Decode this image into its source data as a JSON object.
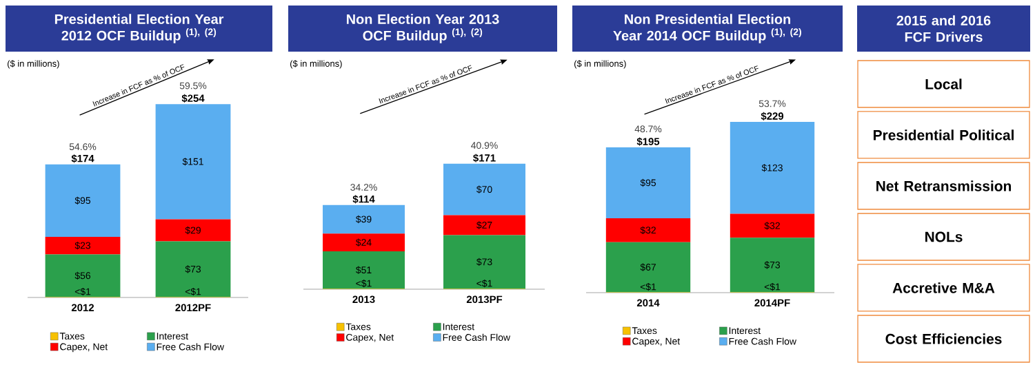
{
  "chart_data": [
    {
      "type": "bar",
      "stacked": true,
      "title": "Presidential Election Year 2012 OCF Buildup $^{(1), (2)}$",
      "subtitle": "($ in millions)",
      "categories": [
        "2012",
        "2012PF"
      ],
      "legend": "bottom",
      "tick_labels": "x",
      "series": [
        {
          "name": "Taxes",
          "color": "#f7c100",
          "values": [
            0.5,
            0.5
          ],
          "value_labels": [
            "<$1",
            "<$1"
          ]
        },
        {
          "name": "Interest",
          "color": "#2ba04c",
          "values": [
            56,
            73
          ],
          "value_labels": [
            "$56",
            "$73"
          ]
        },
        {
          "name": "Capex, Net",
          "color": "#ff0000",
          "values": [
            23,
            29
          ],
          "value_labels": [
            "$23",
            "$29"
          ]
        },
        {
          "name": "Free Cash Flow",
          "color": "#5aaef0",
          "values": [
            95,
            151
          ],
          "value_labels": [
            "$95",
            "$151"
          ]
        }
      ],
      "totals": [
        "$174",
        "$254"
      ],
      "annotations": [
        "Increase in FCF as % of OCF",
        {
          "text": "54.6%",
          "x": "2012",
          "y": 174
        },
        {
          "text": "59.5%",
          "x": "2012PF",
          "y": 254
        }
      ]
    },
    {
      "type": "bar",
      "stacked": true,
      "title": "Non Election Year 2013 OCF Buildup $^{(1), (2)}$",
      "subtitle": "($ in millions)",
      "categories": [
        "2013",
        "2013PF"
      ],
      "legend": "bottom",
      "tick_labels": "x",
      "series": [
        {
          "name": "Taxes",
          "color": "#f7c100",
          "values": [
            0.5,
            0.5
          ],
          "value_labels": [
            "<$1",
            "<$1"
          ]
        },
        {
          "name": "Interest",
          "color": "#2ba04c",
          "values": [
            51,
            73
          ],
          "value_labels": [
            "$51",
            "$73"
          ]
        },
        {
          "name": "Capex, Net",
          "color": "#ff0000",
          "values": [
            24,
            27
          ],
          "value_labels": [
            "$24",
            "$27"
          ]
        },
        {
          "name": "Free Cash Flow",
          "color": "#5aaef0",
          "values": [
            39,
            70
          ],
          "value_labels": [
            "$39",
            "$70"
          ]
        }
      ],
      "totals": [
        "$114",
        "$171"
      ],
      "annotations": [
        "Increase in FCF as % of OCF",
        {
          "text": "34.2%",
          "x": "2013",
          "y": 114
        },
        {
          "text": "40.9%",
          "x": "2013PF",
          "y": 171
        }
      ]
    },
    {
      "type": "bar",
      "stacked": true,
      "title": "Non Presidential Election Year 2014 OCF Buildup $^{(1), (2)}$",
      "subtitle": "($ in millions)",
      "categories": [
        "2014",
        "2014PF"
      ],
      "legend": "bottom",
      "tick_labels": "x",
      "series": [
        {
          "name": "Taxes",
          "color": "#f7c100",
          "values": [
            0.5,
            0.5
          ],
          "value_labels": [
            "<$1",
            "<$1"
          ]
        },
        {
          "name": "Interest",
          "color": "#2ba04c",
          "values": [
            67,
            73
          ],
          "value_labels": [
            "$67",
            "$73"
          ]
        },
        {
          "name": "Capex, Net",
          "color": "#ff0000",
          "values": [
            32,
            32
          ],
          "value_labels": [
            "$32",
            "$32"
          ]
        },
        {
          "name": "Free Cash Flow",
          "color": "#5aaef0",
          "values": [
            95,
            123
          ],
          "value_labels": [
            "$95",
            "$123"
          ]
        }
      ],
      "totals": [
        "$195",
        "$229"
      ],
      "annotations": [
        "Increase in FCF as % of OCF",
        {
          "text": "48.7%",
          "x": "2014",
          "y": 195
        },
        {
          "text": "53.7%",
          "x": "2014PF",
          "y": 229
        }
      ]
    },
    {
      "type": "other",
      "title": "2015 and 2016 FCF Drivers",
      "annotations": [
        "Local",
        "Presidential Political",
        "Net Retransmission",
        "NOLs",
        "Accretive M&A",
        "Cost Efficiencies"
      ]
    }
  ]
}
